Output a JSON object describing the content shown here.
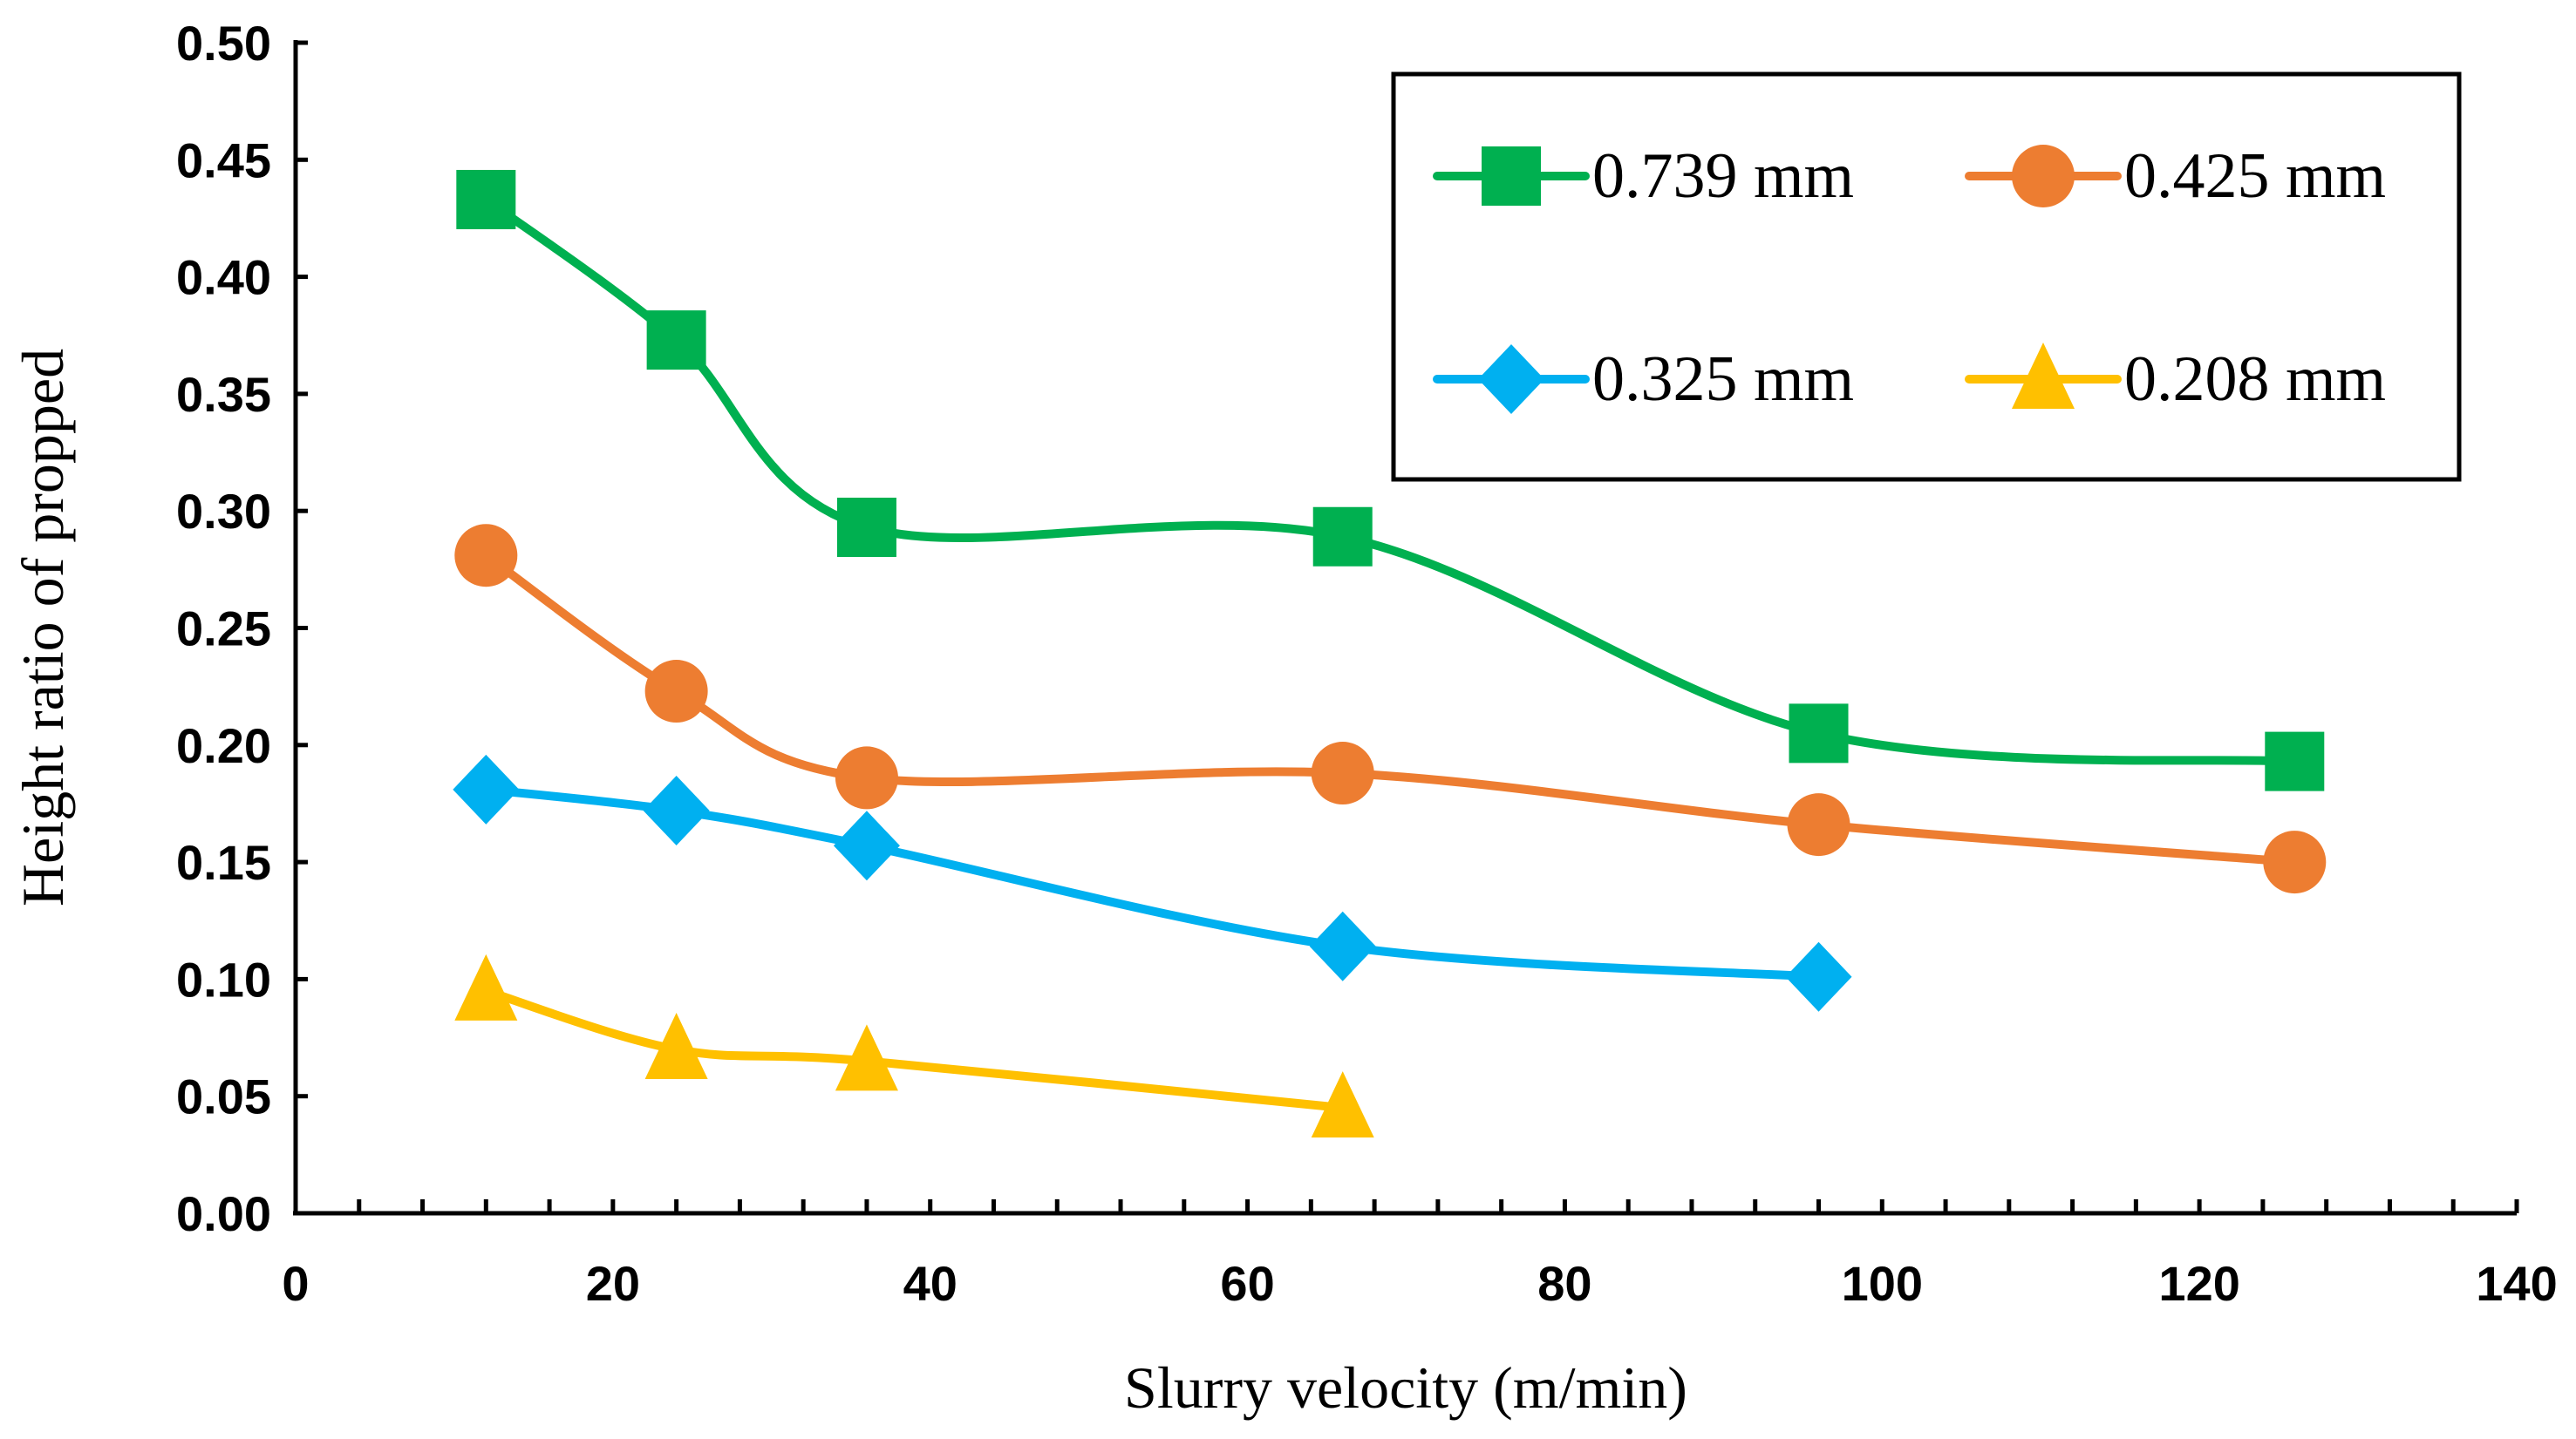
{
  "chart_data": {
    "type": "line",
    "title": "",
    "xlabel": "Slurry velocity (m/min)",
    "ylabel": "Height ratio of propped",
    "xlim": [
      0,
      140
    ],
    "ylim": [
      0,
      0.5
    ],
    "xticks": [
      "0",
      "20",
      "40",
      "60",
      "80",
      "100",
      "120",
      "140"
    ],
    "yticks": [
      "0.00",
      "0.05",
      "0.10",
      "0.15",
      "0.20",
      "0.25",
      "0.30",
      "0.35",
      "0.40",
      "0.45",
      "0.50"
    ],
    "grid": false,
    "legend_position": "top-right",
    "series": [
      {
        "name": "0.739 mm",
        "color": "#00B050",
        "marker": "square",
        "x": [
          12,
          24,
          36,
          66,
          96,
          126
        ],
        "y": [
          0.433,
          0.373,
          0.293,
          0.289,
          0.205,
          0.193
        ]
      },
      {
        "name": "0.425 mm",
        "color": "#ED7D31",
        "marker": "circle",
        "x": [
          12,
          24,
          36,
          66,
          96,
          126
        ],
        "y": [
          0.281,
          0.223,
          0.186,
          0.188,
          0.166,
          0.15
        ]
      },
      {
        "name": "0.325 mm",
        "color": "#00B0F0",
        "marker": "diamond",
        "x": [
          12,
          24,
          36,
          66,
          96
        ],
        "y": [
          0.181,
          0.172,
          0.157,
          0.114,
          0.101
        ]
      },
      {
        "name": "0.208 mm",
        "color": "#FFC000",
        "marker": "triangle",
        "x": [
          12,
          24,
          36,
          66
        ],
        "y": [
          0.095,
          0.07,
          0.065,
          0.045
        ]
      }
    ]
  }
}
